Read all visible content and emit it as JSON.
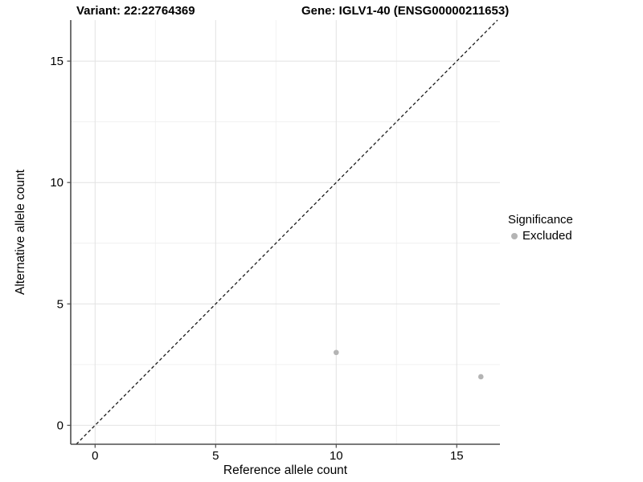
{
  "header": {
    "title_left": "Variant: 22:22764369",
    "title_right": "Gene: IGLV1-40 (ENSG00000211653)"
  },
  "chart_data": {
    "type": "scatter",
    "title": "Variant: 22:22764369   Gene: IGLV1-40 (ENSG00000211653)",
    "xlabel": "Reference allele count",
    "ylabel": "Alternative allele count",
    "x_ticks": [
      0,
      5,
      10,
      15
    ],
    "y_ticks": [
      0,
      5,
      10,
      15
    ],
    "x_minor": [
      2.5,
      7.5,
      12.5
    ],
    "y_minor": [
      2.5,
      7.5,
      12.5
    ],
    "xlim": [
      -1.01,
      16.79
    ],
    "ylim": [
      -0.78,
      16.69
    ],
    "grid": {
      "major_color": "#e2e2e2",
      "minor_color": "#f0f0f0",
      "on": true
    },
    "axis_color": "#4d4d4d",
    "identity_line": {
      "type": "y=x",
      "style": "dashed",
      "color": "#1a1a1a"
    },
    "series": [
      {
        "name": "Excluded",
        "color": "#b4b4b4",
        "points": [
          {
            "x": 10,
            "y": 3
          },
          {
            "x": 16,
            "y": 2
          }
        ]
      }
    ],
    "legend": {
      "title": "Significance",
      "position": "right",
      "items": [
        {
          "label": "Excluded",
          "color": "#b4b4b4"
        }
      ]
    }
  }
}
